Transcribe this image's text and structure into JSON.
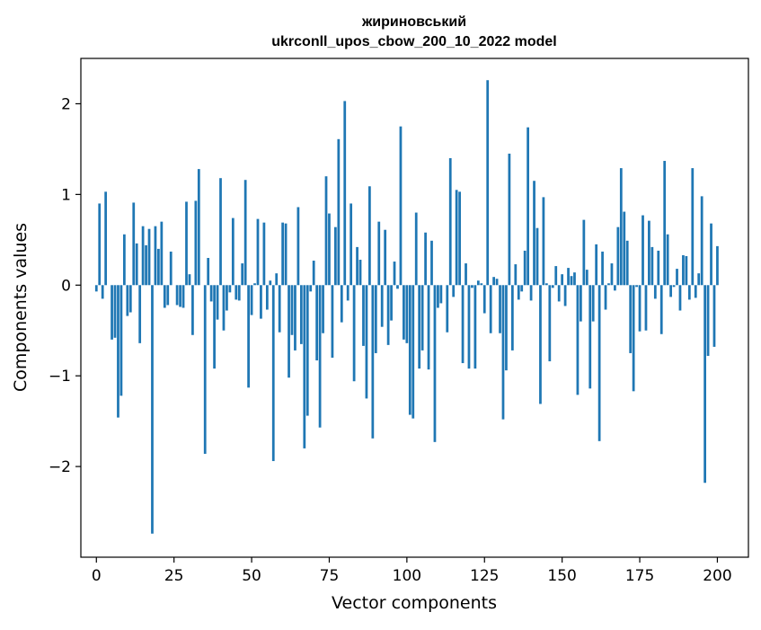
{
  "chart_data": {
    "type": "bar",
    "title_lines": [
      "жириновський",
      "ukrconll_upos_cbow_200_10_2022 model"
    ],
    "xlabel": "Vector components",
    "ylabel": "Components values",
    "xlim": [
      -5,
      210
    ],
    "ylim": [
      -3.0,
      2.5
    ],
    "xticks": [
      0,
      25,
      50,
      75,
      100,
      125,
      150,
      175,
      200
    ],
    "xtick_labels": [
      "0",
      "25",
      "50",
      "75",
      "100",
      "125",
      "150",
      "175",
      "200"
    ],
    "yticks": [
      -2,
      -1,
      0,
      1,
      2
    ],
    "ytick_labels": [
      "−2",
      "−1",
      "0",
      "1",
      "2"
    ],
    "bar_color": "#1f77b4",
    "grid": false,
    "values": [
      -0.07,
      0.9,
      -0.15,
      1.03,
      0.0,
      -0.6,
      -0.58,
      -1.46,
      -1.22,
      0.56,
      -0.34,
      -0.3,
      0.91,
      0.46,
      -0.64,
      0.65,
      0.44,
      0.62,
      -2.74,
      0.65,
      0.4,
      0.7,
      -0.25,
      -0.22,
      0.37,
      0.0,
      -0.22,
      -0.24,
      -0.25,
      0.92,
      0.12,
      -0.55,
      0.93,
      1.28,
      0.0,
      -1.86,
      0.3,
      -0.18,
      -0.92,
      -0.38,
      1.18,
      -0.5,
      -0.28,
      -0.08,
      0.74,
      -0.16,
      -0.17,
      0.24,
      1.16,
      -1.13,
      -0.33,
      0.02,
      0.73,
      -0.37,
      0.69,
      -0.27,
      0.05,
      -1.94,
      0.13,
      -0.52,
      0.69,
      0.68,
      -1.02,
      -0.55,
      -0.72,
      0.86,
      -0.65,
      -1.8,
      -1.44,
      -0.07,
      0.27,
      -0.83,
      -1.57,
      -0.53,
      1.2,
      0.79,
      -0.8,
      0.64,
      1.61,
      -0.41,
      2.03,
      -0.17,
      0.9,
      -1.06,
      0.42,
      0.28,
      -0.67,
      -1.25,
      1.09,
      -1.69,
      -0.75,
      0.7,
      -0.46,
      0.61,
      -0.66,
      -0.39,
      0.26,
      -0.04,
      1.75,
      -0.6,
      -0.64,
      -1.43,
      -1.47,
      0.8,
      -0.92,
      -0.72,
      0.58,
      -0.93,
      0.49,
      -1.73,
      -0.25,
      -0.2,
      0.0,
      -0.52,
      1.4,
      -0.13,
      1.05,
      1.03,
      -0.86,
      0.24,
      -0.92,
      -0.03,
      -0.92,
      0.05,
      0.02,
      -0.31,
      2.26,
      -0.53,
      0.09,
      0.07,
      -0.53,
      -1.48,
      -0.94,
      1.45,
      -0.72,
      0.23,
      -0.16,
      -0.07,
      0.38,
      1.74,
      -0.17,
      1.15,
      0.63,
      -1.31,
      0.97,
      0.02,
      -0.84,
      -0.03,
      0.21,
      -0.18,
      0.12,
      -0.23,
      0.19,
      0.1,
      0.14,
      -1.21,
      -0.4,
      0.72,
      0.17,
      -1.14,
      -0.4,
      0.45,
      -1.72,
      0.37,
      -0.27,
      0.02,
      0.24,
      -0.06,
      0.64,
      1.29,
      0.81,
      0.49,
      -0.75,
      -1.17,
      -0.02,
      -0.51,
      0.77,
      -0.5,
      0.71,
      0.42,
      -0.15,
      0.38,
      -0.54,
      1.37,
      0.56,
      -0.13,
      -0.02,
      0.18,
      -0.28,
      0.33,
      0.32,
      -0.16,
      1.29,
      -0.14,
      0.13,
      0.98,
      -2.18,
      -0.78,
      0.68,
      -0.68,
      0.43
    ]
  }
}
